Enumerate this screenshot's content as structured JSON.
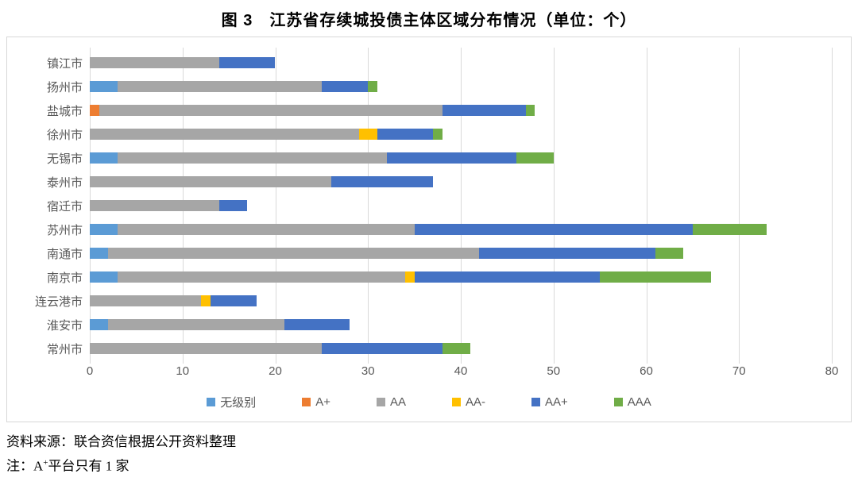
{
  "title": "图 3　江苏省存续城投债主体区域分布情况（单位：个）",
  "notes": {
    "source": "资料来源：联合资信根据公开资料整理",
    "note_prefix": "注：A",
    "note_sup": "+",
    "note_suffix": "平台只有 1 家"
  },
  "colors": {
    "grid": "#d9d9d9",
    "axis_text": "#595959",
    "box_border": "#d7d7d7"
  },
  "chart_data": {
    "type": "bar",
    "orientation": "horizontal",
    "stacked": true,
    "title": "图 3　江苏省存续城投债主体区域分布情况（单位：个）",
    "xlabel": "",
    "ylabel": "",
    "xlim": [
      0,
      80
    ],
    "xticks": [
      0,
      10,
      20,
      30,
      40,
      50,
      60,
      70,
      80
    ],
    "grid": true,
    "legend_position": "bottom",
    "categories": [
      "镇江市",
      "扬州市",
      "盐城市",
      "徐州市",
      "无锡市",
      "泰州市",
      "宿迁市",
      "苏州市",
      "南通市",
      "南京市",
      "连云港市",
      "淮安市",
      "常州市"
    ],
    "series": [
      {
        "name": "无级别",
        "color": "#5B9BD5",
        "values": [
          0,
          3,
          0,
          0,
          3,
          0,
          0,
          3,
          2,
          3,
          0,
          2,
          0
        ]
      },
      {
        "name": "A+",
        "color": "#ED7D31",
        "values": [
          0,
          0,
          1,
          0,
          0,
          0,
          0,
          0,
          0,
          0,
          0,
          0,
          0
        ]
      },
      {
        "name": "AA",
        "color": "#A6A6A6",
        "values": [
          14,
          22,
          37,
          29,
          29,
          26,
          14,
          32,
          40,
          31,
          12,
          19,
          25
        ]
      },
      {
        "name": "AA-",
        "color": "#FFC000",
        "values": [
          0,
          0,
          0,
          2,
          0,
          0,
          0,
          0,
          0,
          1,
          1,
          0,
          0
        ]
      },
      {
        "name": "AA+",
        "color": "#4472C4",
        "values": [
          6,
          5,
          9,
          6,
          14,
          11,
          3,
          30,
          19,
          20,
          5,
          7,
          13
        ]
      },
      {
        "name": "AAA",
        "color": "#70AD47",
        "values": [
          0,
          1,
          1,
          1,
          4,
          0,
          0,
          8,
          3,
          12,
          0,
          0,
          3
        ]
      }
    ],
    "totals": [
      20,
      31,
      48,
      38,
      50,
      37,
      17,
      73,
      64,
      67,
      18,
      28,
      41
    ]
  }
}
